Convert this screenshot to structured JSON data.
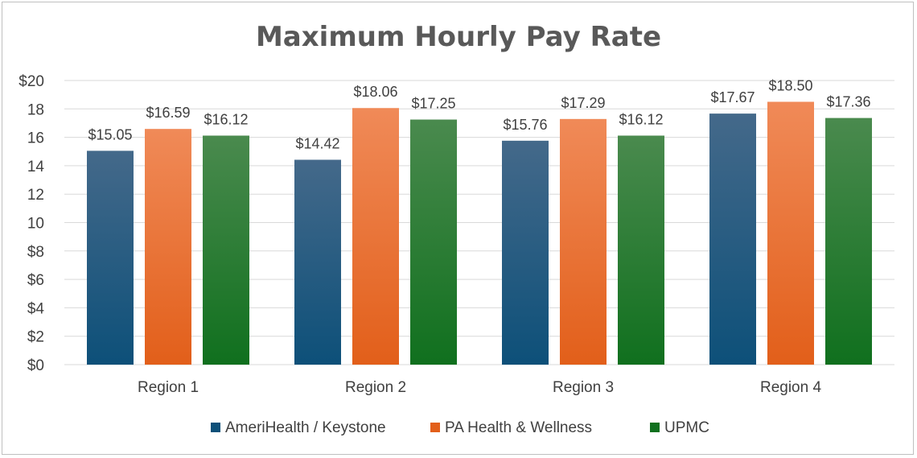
{
  "chart_data": {
    "type": "bar",
    "title": "Maximum Hourly Pay Rate",
    "categories": [
      "Region 1",
      "Region 2",
      "Region 3",
      "Region 4"
    ],
    "series": [
      {
        "name": "AmeriHealth / Keystone",
        "values": [
          15.05,
          14.42,
          15.76,
          17.67
        ],
        "labels": [
          "$15.05",
          "$14.42",
          "$15.76",
          "$17.67"
        ],
        "color_top": "#44698a",
        "color_bottom": "#0d5079"
      },
      {
        "name": "PA Health & Wellness",
        "values": [
          16.59,
          18.06,
          17.29,
          18.5
        ],
        "labels": [
          "$16.59",
          "$18.06",
          "$17.29",
          "$18.50"
        ],
        "color_top": "#f08a58",
        "color_bottom": "#e25f1a"
      },
      {
        "name": "UPMC",
        "values": [
          16.12,
          17.25,
          16.12,
          17.36
        ],
        "labels": [
          "$16.12",
          "$17.25",
          "$16.12",
          "$17.36"
        ],
        "color_top": "#4a8a4e",
        "color_bottom": "#10701e"
      }
    ],
    "yticks": [
      "$0",
      "$2",
      "$4",
      "$6",
      "$8",
      "10",
      "12",
      "14",
      "16",
      "18",
      "$20"
    ],
    "ylim": [
      0,
      20
    ],
    "grid": true,
    "legend": "bottom"
  }
}
